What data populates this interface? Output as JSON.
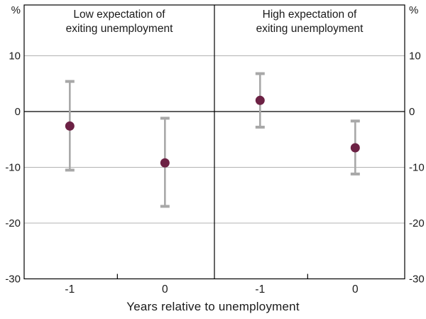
{
  "figure": {
    "unit_left": "%",
    "unit_right": "%"
  },
  "chart_data": {
    "type": "scatter",
    "subtype": "dot-whisker-error-bars",
    "xlabel": "Years relative to unemployment",
    "ylabel": "%",
    "ylim": [
      -30,
      20
    ],
    "y_ticks": [
      10,
      0,
      -10,
      -20,
      -30
    ],
    "y_tick_labels": [
      "10",
      "0",
      "-10",
      "-20",
      "-30"
    ],
    "grid": true,
    "zero_line": true,
    "legend": "none",
    "panels": [
      {
        "title_lines": [
          "Low expectation of",
          "exiting unemployment"
        ],
        "categories": [
          "-1",
          "0"
        ],
        "points": [
          {
            "x": "-1",
            "estimate": -2.6,
            "ci_low": -10.5,
            "ci_high": 5.4
          },
          {
            "x": "0",
            "estimate": -9.2,
            "ci_low": -17.0,
            "ci_high": -1.2
          }
        ]
      },
      {
        "title_lines": [
          "High expectation of",
          "exiting unemployment"
        ],
        "categories": [
          "-1",
          "0"
        ],
        "points": [
          {
            "x": "-1",
            "estimate": 2.0,
            "ci_low": -2.8,
            "ci_high": 6.8
          },
          {
            "x": "0",
            "estimate": -6.5,
            "ci_low": -11.2,
            "ci_high": -1.7
          }
        ]
      }
    ],
    "colors": {
      "point": "#6c2144",
      "error_bar": "#a8a8a8",
      "grid": "#b3b3b3",
      "axis": "#000000",
      "text": "#1a1a1a"
    }
  }
}
